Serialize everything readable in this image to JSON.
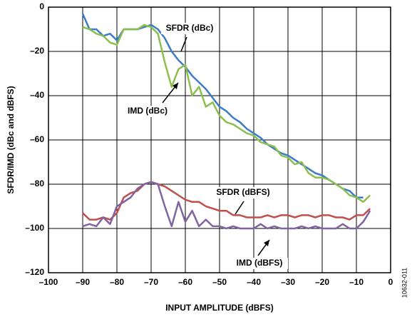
{
  "chart_data": {
    "type": "line",
    "x_label": "INPUT AMPLITUDE (dBFS)",
    "y_label": "SFDR/IMD (dBc and dBFS)",
    "figure_id": "10632-011",
    "annotations": [
      "SFDR (dBc)",
      "IMD (dBc)",
      "SFDR (dBFS)",
      "IMD (dBFS)"
    ],
    "xlim": [
      -100,
      0
    ],
    "xticks": [
      {
        "value": -100,
        "label": "–100"
      },
      {
        "value": -90,
        "label": "–90"
      },
      {
        "value": -80,
        "label": "–80"
      },
      {
        "value": -70,
        "label": "–70"
      },
      {
        "value": -60,
        "label": "–60"
      },
      {
        "value": -50,
        "label": "–50"
      },
      {
        "value": -40,
        "label": "–40"
      },
      {
        "value": -30,
        "label": "–30"
      },
      {
        "value": -20,
        "label": "–20"
      },
      {
        "value": -10,
        "label": "–10"
      },
      0
    ],
    "ylim": [
      -120,
      0
    ],
    "yticks": [
      0,
      {
        "value": -20,
        "label": "–20"
      },
      {
        "value": -40,
        "label": "–40"
      },
      {
        "value": -60,
        "label": "–60"
      },
      {
        "value": -80,
        "label": "–80"
      },
      {
        "value": -100,
        "label": "–100"
      },
      {
        "value": -120,
        "label": "–120"
      }
    ],
    "grid": true,
    "x": [
      -90,
      -88,
      -86,
      -84,
      -82,
      -80,
      -78,
      -76,
      -74,
      -72,
      -70,
      -68,
      -66,
      -64,
      -62,
      -60,
      -58,
      -56,
      -54,
      -52,
      -50,
      -48,
      -46,
      -44,
      -42,
      -40,
      -38,
      -36,
      -34,
      -32,
      -30,
      -28,
      -26,
      -24,
      -22,
      -20,
      -18,
      -16,
      -14,
      -12,
      -10,
      -8,
      -6
    ],
    "series": [
      {
        "color": "#3d7cc9",
        "values": [
          -3,
          -10,
          -10,
          -13,
          -12,
          -15,
          -10,
          -10,
          -10,
          -9,
          -8,
          -10,
          -14,
          -20,
          -24,
          -27,
          -31,
          -34,
          -37,
          -41,
          -45,
          -47,
          -50,
          -52,
          -55,
          -57,
          -59,
          -62,
          -64,
          -66,
          -67,
          -69,
          -71,
          -73,
          -75,
          -76,
          -78,
          -80,
          -82,
          -83,
          -86,
          -86,
          null
        ]
      },
      {
        "color": "#8cbf4f",
        "values": [
          -9,
          -10,
          -12,
          -13,
          -16,
          -17,
          -10,
          -10,
          -10,
          -8,
          -9,
          -12,
          -25,
          -36,
          -28,
          -26,
          -40,
          -36,
          -45,
          -43,
          -49,
          -52,
          -53,
          -55,
          -57,
          -58,
          -61,
          -62,
          -63,
          -67,
          -68,
          -71,
          -70,
          -75,
          -77,
          -77,
          -78,
          -80,
          -82,
          -85,
          -86,
          -88,
          -85
        ]
      },
      {
        "color": "#c0504d",
        "values": [
          -93,
          -96,
          -96,
          -95,
          -96,
          -93,
          -86,
          -84,
          -83,
          -80,
          -79,
          -80,
          -81,
          -83,
          -85,
          -87,
          -88,
          -88,
          -90,
          -91,
          -92,
          -92,
          -94,
          -94,
          -95,
          -95,
          -95,
          -94,
          -95,
          -94,
          -94,
          -95,
          -94,
          -94,
          -95,
          -94,
          -94,
          -95,
          -95,
          -96,
          -94,
          -94,
          -91
        ]
      },
      {
        "color": "#8064a2",
        "values": [
          -99,
          -98,
          -99,
          -95,
          -98,
          -90,
          -88,
          -86,
          -82,
          -80,
          -79,
          -80,
          -90,
          -99,
          -88,
          -97,
          -92,
          -99,
          -96,
          -99,
          -99,
          -100,
          -99,
          -100,
          -100,
          -100,
          -98,
          -100,
          -99,
          -100,
          -100,
          -100,
          -99,
          -100,
          -99,
          -100,
          -100,
          -100,
          -98,
          -100,
          -100,
          -97,
          -92
        ]
      }
    ]
  }
}
